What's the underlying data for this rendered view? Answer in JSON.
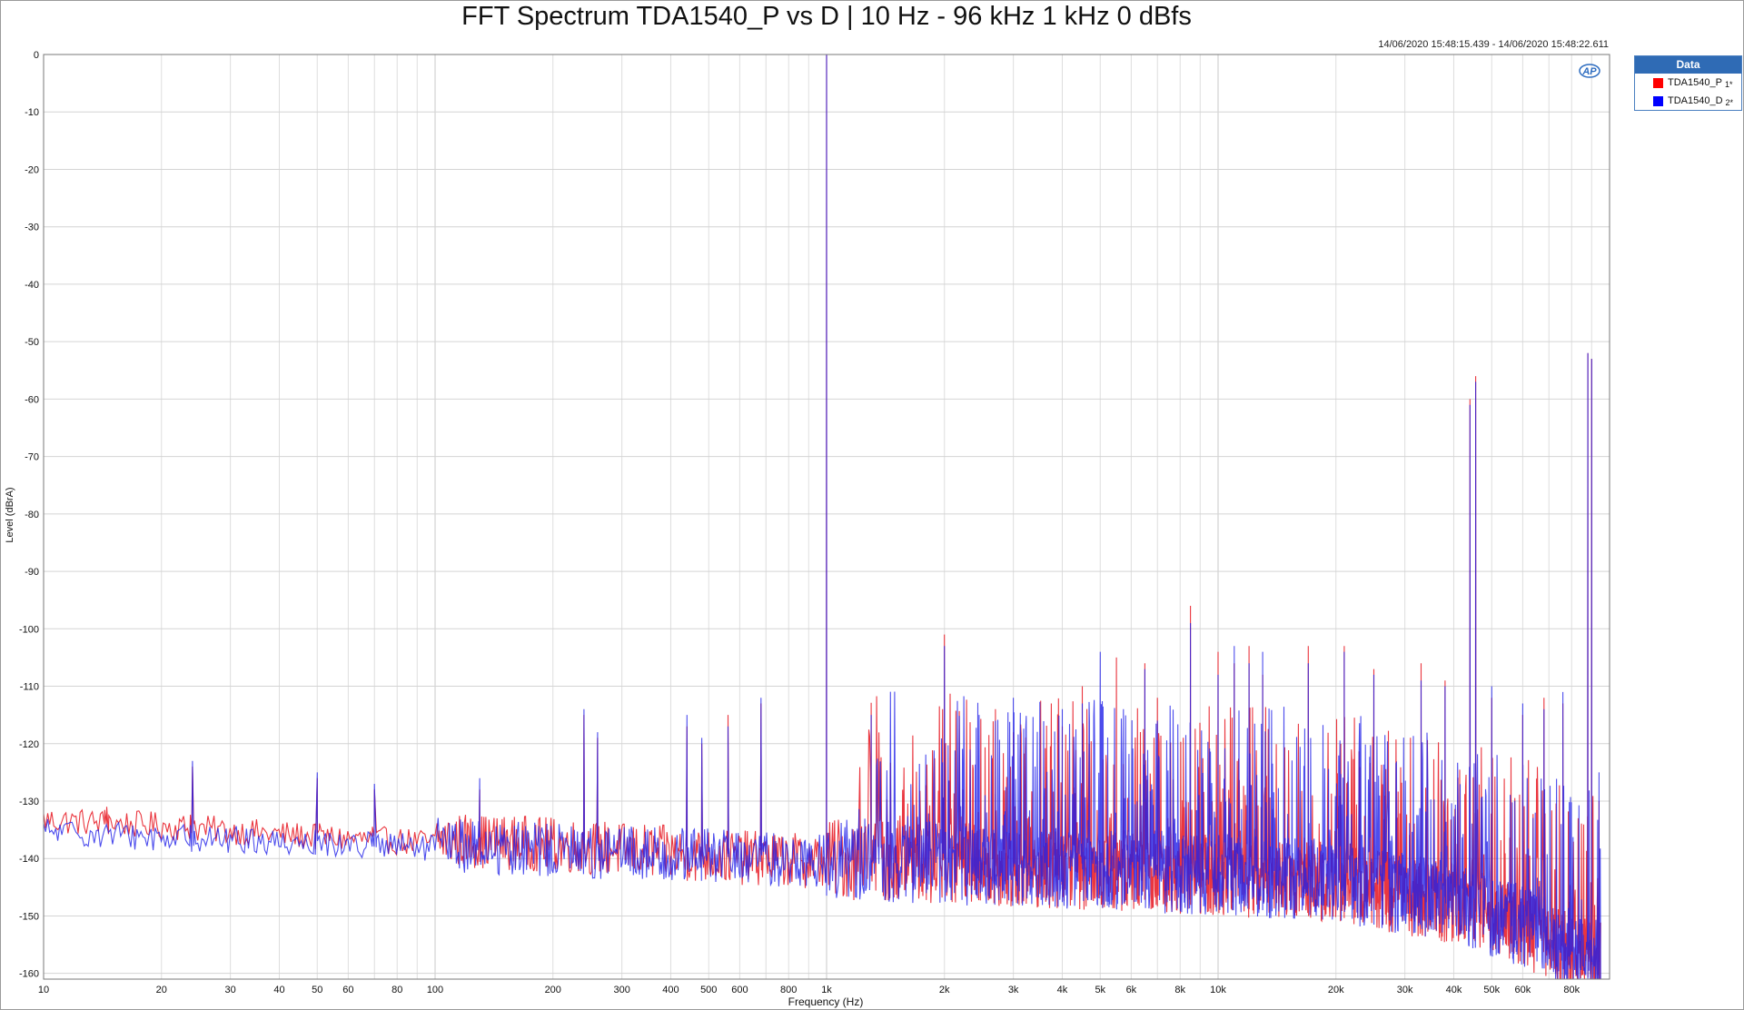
{
  "chart_data": {
    "type": "line",
    "title": "FFT Spectrum TDA1540_P vs D | 10 Hz - 96 kHz  1 kHz 0 dBfs",
    "timestamp": "14/06/2020 15:48:15.439 - 14/06/2020 15:48:22.611",
    "xlabel": "Frequency (Hz)",
    "ylabel": "Level (dBrA)",
    "x_scale": "log",
    "xlim": [
      10,
      100000
    ],
    "ylim": [
      -161,
      0
    ],
    "grid": true,
    "x_ticks": [
      {
        "value": 10,
        "label": "10"
      },
      {
        "value": 20,
        "label": "20"
      },
      {
        "value": 30,
        "label": "30"
      },
      {
        "value": 40,
        "label": "40"
      },
      {
        "value": 50,
        "label": "50"
      },
      {
        "value": 60,
        "label": "60"
      },
      {
        "value": 80,
        "label": "80"
      },
      {
        "value": 100,
        "label": "100"
      },
      {
        "value": 200,
        "label": "200"
      },
      {
        "value": 300,
        "label": "300"
      },
      {
        "value": 400,
        "label": "400"
      },
      {
        "value": 500,
        "label": "500"
      },
      {
        "value": 600,
        "label": "600"
      },
      {
        "value": 800,
        "label": "800"
      },
      {
        "value": 1000,
        "label": "1k"
      },
      {
        "value": 2000,
        "label": "2k"
      },
      {
        "value": 3000,
        "label": "3k"
      },
      {
        "value": 4000,
        "label": "4k"
      },
      {
        "value": 5000,
        "label": "5k"
      },
      {
        "value": 6000,
        "label": "6k"
      },
      {
        "value": 8000,
        "label": "8k"
      },
      {
        "value": 10000,
        "label": "10k"
      },
      {
        "value": 20000,
        "label": "20k"
      },
      {
        "value": 30000,
        "label": "30k"
      },
      {
        "value": 40000,
        "label": "40k"
      },
      {
        "value": 50000,
        "label": "50k"
      },
      {
        "value": 60000,
        "label": "60k"
      },
      {
        "value": 80000,
        "label": "80k"
      }
    ],
    "y_ticks": [
      0,
      -10,
      -20,
      -30,
      -40,
      -50,
      -60,
      -70,
      -80,
      -90,
      -100,
      -110,
      -120,
      -130,
      -140,
      -150,
      -160
    ],
    "legend": {
      "title": "Data",
      "position": "top-right-outside",
      "items": [
        {
          "label": "TDA1540_P",
          "suffix": "1*",
          "color": "#ff0000"
        },
        {
          "label": "TDA1540_D",
          "suffix": "2*",
          "color": "#0000ff"
        }
      ]
    },
    "series": [
      {
        "name": "TDA1540_P",
        "color": "#e8202a",
        "noise_floor": [
          [
            10,
            -134
          ],
          [
            20,
            -135
          ],
          [
            50,
            -137
          ],
          [
            100,
            -138
          ],
          [
            200,
            -139
          ],
          [
            500,
            -141
          ],
          [
            1000,
            -142
          ],
          [
            2000,
            -143
          ],
          [
            5000,
            -144
          ],
          [
            10000,
            -145
          ],
          [
            20000,
            -146
          ],
          [
            40000,
            -150
          ],
          [
            60000,
            -154
          ],
          [
            90000,
            -160
          ]
        ],
        "peaks": [
          [
            14.5,
            -131
          ],
          [
            24,
            -124
          ],
          [
            50,
            -126
          ],
          [
            70,
            -128
          ],
          [
            130,
            -128
          ],
          [
            240,
            -115
          ],
          [
            260,
            -119
          ],
          [
            440,
            -117
          ],
          [
            480,
            -120
          ],
          [
            560,
            -115
          ],
          [
            680,
            -113
          ],
          [
            1000,
            0
          ],
          [
            1300,
            -119
          ],
          [
            2000,
            -101
          ],
          [
            2700,
            -114
          ],
          [
            3000,
            -118
          ],
          [
            4000,
            -117
          ],
          [
            4500,
            -110
          ],
          [
            5500,
            -105
          ],
          [
            6500,
            -106
          ],
          [
            7000,
            -112
          ],
          [
            8500,
            -96
          ],
          [
            10000,
            -104
          ],
          [
            11000,
            -106
          ],
          [
            12000,
            -103
          ],
          [
            13000,
            -108
          ],
          [
            17000,
            -103
          ],
          [
            21000,
            -103
          ],
          [
            25000,
            -107
          ],
          [
            33000,
            -106
          ],
          [
            38000,
            -109
          ],
          [
            44000,
            -60
          ],
          [
            45500,
            -56
          ],
          [
            50000,
            -112
          ],
          [
            60000,
            -115
          ],
          [
            68000,
            -112
          ],
          [
            76000,
            -113
          ],
          [
            88000,
            -52
          ],
          [
            90000,
            -53
          ],
          [
            94000,
            -130
          ]
        ]
      },
      {
        "name": "TDA1540_D",
        "color": "#2020e8",
        "noise_floor": [
          [
            10,
            -136
          ],
          [
            20,
            -137
          ],
          [
            50,
            -138
          ],
          [
            100,
            -139
          ],
          [
            200,
            -140
          ],
          [
            500,
            -141
          ],
          [
            1000,
            -142
          ],
          [
            2000,
            -143
          ],
          [
            5000,
            -144
          ],
          [
            10000,
            -145
          ],
          [
            20000,
            -146
          ],
          [
            40000,
            -150
          ],
          [
            60000,
            -154
          ],
          [
            90000,
            -160
          ]
        ],
        "peaks": [
          [
            24,
            -123
          ],
          [
            50,
            -125
          ],
          [
            70,
            -127
          ],
          [
            130,
            -126
          ],
          [
            240,
            -114
          ],
          [
            260,
            -118
          ],
          [
            440,
            -115
          ],
          [
            480,
            -119
          ],
          [
            560,
            -117
          ],
          [
            680,
            -112
          ],
          [
            1000,
            0
          ],
          [
            1300,
            -115
          ],
          [
            2000,
            -103
          ],
          [
            2700,
            -116
          ],
          [
            3000,
            -112
          ],
          [
            4000,
            -114
          ],
          [
            4500,
            -113
          ],
          [
            5000,
            -104
          ],
          [
            6500,
            -107
          ],
          [
            7000,
            -116
          ],
          [
            8500,
            -99
          ],
          [
            10000,
            -108
          ],
          [
            11000,
            -103
          ],
          [
            12000,
            -106
          ],
          [
            13000,
            -104
          ],
          [
            17000,
            -106
          ],
          [
            21000,
            -104
          ],
          [
            25000,
            -108
          ],
          [
            33000,
            -109
          ],
          [
            38000,
            -110
          ],
          [
            44000,
            -61
          ],
          [
            45500,
            -57
          ],
          [
            50000,
            -110
          ],
          [
            60000,
            -113
          ],
          [
            68000,
            -114
          ],
          [
            76000,
            -111
          ],
          [
            88000,
            -52
          ],
          [
            90000,
            -53
          ],
          [
            94000,
            -125
          ]
        ]
      }
    ]
  }
}
